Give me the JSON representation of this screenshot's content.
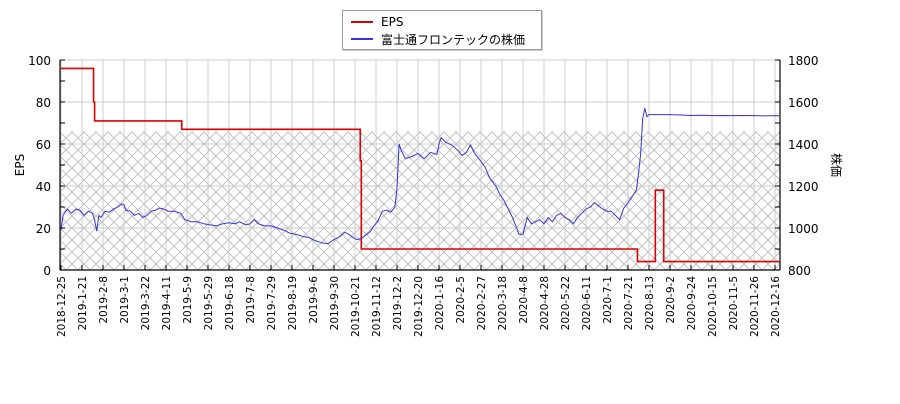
{
  "chart_data": {
    "type": "line",
    "title": "",
    "xlabel": "",
    "ylabel": "EPS",
    "y2label": "株価",
    "ylim": [
      0,
      100
    ],
    "y2lim": [
      800,
      1800
    ],
    "yticks": [
      0,
      20,
      40,
      60,
      80,
      100
    ],
    "y2ticks": [
      800,
      1000,
      1200,
      1400,
      1600,
      1800
    ],
    "grid": true,
    "legend_position": "top-center",
    "categories": [
      "2018-12-25",
      "2019-1-21",
      "2019-2-8",
      "2019-3-1",
      "2019-3-22",
      "2019-4-11",
      "2019-5-9",
      "2019-5-29",
      "2019-6-18",
      "2019-7-8",
      "2019-7-29",
      "2019-8-19",
      "2019-9-6",
      "2019-9-30",
      "2019-10-21",
      "2019-11-12",
      "2019-12-2",
      "2019-12-20",
      "2020-1-16",
      "2020-2-5",
      "2020-2-27",
      "2020-3-18",
      "2020-4-8",
      "2020-4-28",
      "2020-5-22",
      "2020-6-11",
      "2020-7-1",
      "2020-7-21",
      "2020-8-13",
      "2020-9-2",
      "2020-9-24",
      "2020-10-15",
      "2020-11-5",
      "2020-11-26",
      "2020-12-16"
    ],
    "series": [
      {
        "name": "EPS",
        "axis": "left",
        "color": "#dd0000",
        "style": "step",
        "points": [
          [
            0,
            96
          ],
          [
            1.5,
            96
          ],
          [
            1.55,
            80
          ],
          [
            1.6,
            71
          ],
          [
            5.7,
            71
          ],
          [
            5.75,
            67
          ],
          [
            14.2,
            67
          ],
          [
            14.25,
            52
          ],
          [
            14.3,
            10
          ],
          [
            27.4,
            10
          ],
          [
            27.45,
            4
          ],
          [
            28.2,
            4
          ],
          [
            28.3,
            38
          ],
          [
            28.65,
            38
          ],
          [
            28.7,
            4
          ],
          [
            34.2,
            4
          ]
        ]
      },
      {
        "name": "富士通フロンテックの株価",
        "axis": "right",
        "color": "#3333dd",
        "style": "line",
        "points": [
          [
            0,
            990
          ],
          [
            0.1,
            1060
          ],
          [
            0.3,
            1090
          ],
          [
            0.5,
            1070
          ],
          [
            0.7,
            1090
          ],
          [
            0.9,
            1085
          ],
          [
            1.1,
            1060
          ],
          [
            1.3,
            1080
          ],
          [
            1.5,
            1070
          ],
          [
            1.6,
            1040
          ],
          [
            1.7,
            985
          ],
          [
            1.8,
            1060
          ],
          [
            1.9,
            1050
          ],
          [
            2.1,
            1080
          ],
          [
            2.3,
            1075
          ],
          [
            2.5,
            1090
          ],
          [
            2.7,
            1100
          ],
          [
            2.9,
            1115
          ],
          [
            3.0,
            1110
          ],
          [
            3.1,
            1085
          ],
          [
            3.3,
            1080
          ],
          [
            3.5,
            1060
          ],
          [
            3.7,
            1070
          ],
          [
            3.9,
            1050
          ],
          [
            4.1,
            1060
          ],
          [
            4.3,
            1080
          ],
          [
            4.5,
            1085
          ],
          [
            4.7,
            1095
          ],
          [
            4.9,
            1090
          ],
          [
            5.1,
            1080
          ],
          [
            5.4,
            1080
          ],
          [
            5.7,
            1070
          ],
          [
            5.9,
            1040
          ],
          [
            6.2,
            1030
          ],
          [
            6.5,
            1030
          ],
          [
            6.8,
            1020
          ],
          [
            7.1,
            1015
          ],
          [
            7.4,
            1010
          ],
          [
            7.7,
            1020
          ],
          [
            8.0,
            1025
          ],
          [
            8.3,
            1020
          ],
          [
            8.5,
            1030
          ],
          [
            8.8,
            1015
          ],
          [
            9.0,
            1020
          ],
          [
            9.2,
            1040
          ],
          [
            9.4,
            1020
          ],
          [
            9.7,
            1010
          ],
          [
            10.0,
            1010
          ],
          [
            10.3,
            1000
          ],
          [
            10.6,
            990
          ],
          [
            10.9,
            975
          ],
          [
            11.2,
            970
          ],
          [
            11.5,
            960
          ],
          [
            11.8,
            955
          ],
          [
            12.1,
            940
          ],
          [
            12.4,
            930
          ],
          [
            12.7,
            925
          ],
          [
            13.0,
            945
          ],
          [
            13.3,
            960
          ],
          [
            13.5,
            980
          ],
          [
            13.7,
            970
          ],
          [
            13.9,
            955
          ],
          [
            14.1,
            945
          ],
          [
            14.3,
            950
          ],
          [
            14.5,
            965
          ],
          [
            14.7,
            980
          ],
          [
            14.9,
            1010
          ],
          [
            15.1,
            1035
          ],
          [
            15.3,
            1080
          ],
          [
            15.5,
            1085
          ],
          [
            15.7,
            1075
          ],
          [
            15.9,
            1100
          ],
          [
            16.0,
            1190
          ],
          [
            16.1,
            1400
          ],
          [
            16.2,
            1370
          ],
          [
            16.4,
            1330
          ],
          [
            16.7,
            1340
          ],
          [
            17.0,
            1355
          ],
          [
            17.3,
            1330
          ],
          [
            17.6,
            1360
          ],
          [
            17.9,
            1350
          ],
          [
            18.0,
            1400
          ],
          [
            18.1,
            1430
          ],
          [
            18.3,
            1410
          ],
          [
            18.6,
            1395
          ],
          [
            18.9,
            1370
          ],
          [
            19.1,
            1345
          ],
          [
            19.3,
            1360
          ],
          [
            19.5,
            1395
          ],
          [
            19.7,
            1355
          ],
          [
            19.9,
            1330
          ],
          [
            20.2,
            1290
          ],
          [
            20.4,
            1240
          ],
          [
            20.7,
            1200
          ],
          [
            20.9,
            1160
          ],
          [
            21.1,
            1130
          ],
          [
            21.3,
            1090
          ],
          [
            21.5,
            1050
          ],
          [
            21.7,
            1000
          ],
          [
            21.8,
            970
          ],
          [
            22.0,
            970
          ],
          [
            22.2,
            1050
          ],
          [
            22.4,
            1020
          ],
          [
            22.6,
            1030
          ],
          [
            22.8,
            1040
          ],
          [
            23.0,
            1020
          ],
          [
            23.2,
            1050
          ],
          [
            23.4,
            1030
          ],
          [
            23.6,
            1060
          ],
          [
            23.8,
            1070
          ],
          [
            24.0,
            1050
          ],
          [
            24.2,
            1040
          ],
          [
            24.4,
            1020
          ],
          [
            24.6,
            1050
          ],
          [
            24.8,
            1070
          ],
          [
            25.0,
            1090
          ],
          [
            25.2,
            1100
          ],
          [
            25.4,
            1120
          ],
          [
            25.6,
            1105
          ],
          [
            25.8,
            1090
          ],
          [
            26.0,
            1080
          ],
          [
            26.2,
            1080
          ],
          [
            26.4,
            1060
          ],
          [
            26.6,
            1040
          ],
          [
            26.8,
            1095
          ],
          [
            27.0,
            1120
          ],
          [
            27.2,
            1150
          ],
          [
            27.4,
            1180
          ],
          [
            27.5,
            1260
          ],
          [
            27.6,
            1350
          ],
          [
            27.7,
            1520
          ],
          [
            27.8,
            1570
          ],
          [
            27.9,
            1530
          ],
          [
            28.0,
            1540
          ],
          [
            28.5,
            1540
          ],
          [
            29.0,
            1540
          ],
          [
            29.5,
            1538
          ],
          [
            30.0,
            1536
          ],
          [
            30.5,
            1537
          ],
          [
            31.0,
            1535
          ],
          [
            31.5,
            1536
          ],
          [
            32.0,
            1535
          ],
          [
            32.5,
            1536
          ],
          [
            33.0,
            1535
          ],
          [
            33.5,
            1534
          ],
          [
            34.0,
            1535
          ],
          [
            34.2,
            1534
          ]
        ]
      }
    ],
    "hatch_region": {
      "from": 0,
      "to": 66,
      "axis": "left",
      "pattern": "crosshatch"
    }
  },
  "legend": {
    "items": [
      {
        "label": "EPS",
        "color": "#dd0000"
      },
      {
        "label": "富士通フロンテックの株価",
        "color": "#3333dd"
      }
    ]
  },
  "axes": {
    "left_title": "EPS",
    "right_title": "株価"
  }
}
